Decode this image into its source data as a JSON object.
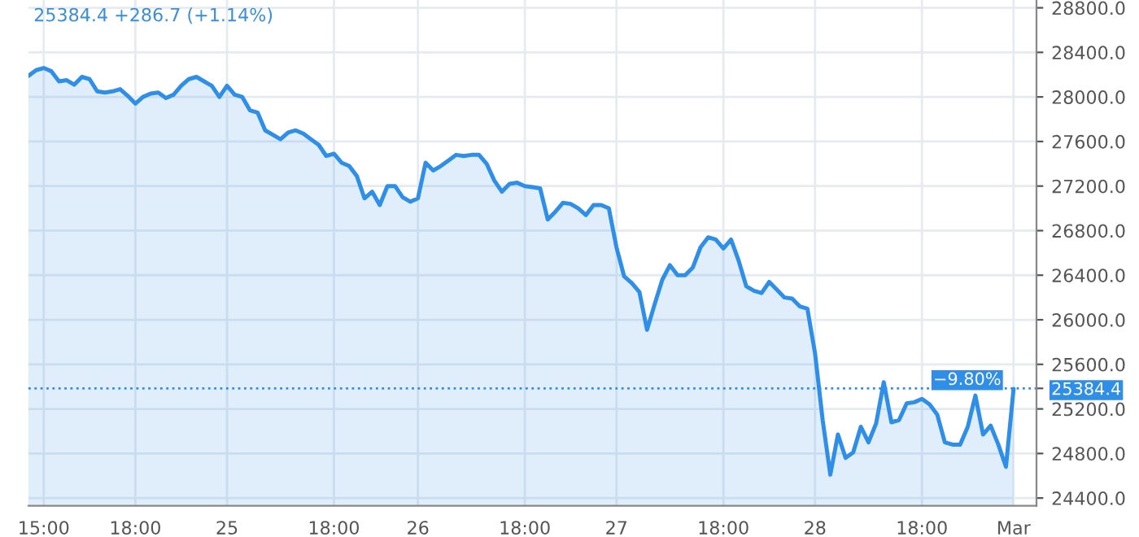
{
  "chart_data": {
    "type": "area",
    "annotations": [
      "25384.4 +286.7 (+1.14%)"
    ],
    "categories": [
      null,
      null,
      "15:00",
      null,
      null,
      null,
      null,
      null,
      null,
      null,
      null,
      null,
      null,
      null,
      "18:00",
      null,
      null,
      null,
      null,
      null,
      null,
      null,
      null,
      null,
      null,
      null,
      "25",
      null,
      null,
      null,
      null,
      null,
      null,
      null,
      null,
      null,
      null,
      null,
      null,
      null,
      "18:00",
      null,
      null,
      null,
      null,
      null,
      null,
      null,
      null,
      null,
      null,
      "26",
      null,
      null,
      null,
      null,
      null,
      null,
      null,
      null,
      null,
      null,
      null,
      null,
      null,
      "18:00",
      null,
      null,
      null,
      null,
      null,
      null,
      null,
      null,
      null,
      null,
      null,
      "27",
      null,
      null,
      null,
      null,
      null,
      null,
      null,
      null,
      null,
      null,
      null,
      null,
      null,
      "18:00",
      null,
      null,
      null,
      null,
      null,
      null,
      null,
      null,
      null,
      null,
      null,
      "28",
      null,
      null,
      null,
      null,
      null,
      null,
      null,
      null,
      null,
      null,
      null,
      null,
      null,
      "18:00",
      null,
      null,
      null,
      null,
      null,
      null,
      null,
      null,
      null,
      null,
      null,
      "Mar",
      null,
      null,
      null
    ],
    "series": [
      {
        "color": "#2f8fe8",
        "values": [
          28190,
          28240,
          28260,
          28230,
          28140,
          28150,
          28110,
          28180,
          28160,
          28050,
          28040,
          28050,
          28070,
          28010,
          27940,
          28000,
          28030,
          28040,
          27990,
          28020,
          28100,
          28160,
          28180,
          28140,
          28100,
          28000,
          28100,
          28020,
          28000,
          27880,
          27860,
          27700,
          27660,
          27620,
          27680,
          27700,
          27670,
          27620,
          27570,
          27470,
          27490,
          27410,
          27380,
          27290,
          27090,
          27150,
          27030,
          27200,
          27200,
          27100,
          27060,
          27090,
          27410,
          27340,
          27380,
          27430,
          27480,
          27470,
          27480,
          27480,
          27400,
          27250,
          27150,
          27220,
          27230,
          27200,
          27190,
          27180,
          26900,
          26970,
          27050,
          27040,
          27000,
          26940,
          27030,
          27030,
          27000,
          26650,
          26390,
          26330,
          26250,
          25910,
          26140,
          26360,
          26490,
          26400,
          26400,
          26470,
          26650,
          26740,
          26720,
          26640,
          26720,
          26530,
          26300,
          26260,
          26240,
          26340,
          26270,
          26200,
          26190,
          26120,
          26100,
          25700,
          25100,
          24610,
          24970,
          24760,
          24810,
          25040,
          24900,
          25070,
          25440,
          25080,
          25100,
          25250,
          25260,
          25290,
          25240,
          25150,
          24900,
          24880,
          24880,
          25040,
          25320,
          24970,
          25050,
          24880,
          24680,
          25380,
          null,
          null,
          null
        ]
      }
    ],
    "ylim": [
      24330,
      28870
    ],
    "yticks": [
      {
        "value": 24400,
        "label": "24400.0"
      },
      {
        "value": 24800,
        "label": "24800.0"
      },
      {
        "value": 25200,
        "label": "25200.0"
      },
      {
        "value": 25600,
        "label": "25600.0"
      },
      {
        "value": 26000,
        "label": "26000.0"
      },
      {
        "value": 26400,
        "label": "26400.0"
      },
      {
        "value": 26800,
        "label": "26800.0"
      },
      {
        "value": 27200,
        "label": "27200.0"
      },
      {
        "value": 27600,
        "label": "27600.0"
      },
      {
        "value": 28000,
        "label": "28000.0"
      },
      {
        "value": 28400,
        "label": "28400.0"
      },
      {
        "value": 28800,
        "label": "28800.0"
      },
      {
        "value": 25384.4,
        "label": "25384.4"
      }
    ],
    "ref_lines": [
      {
        "axis": "y",
        "value": 25384.4,
        "label": "−9.80%",
        "color": "#2f8fe8",
        "line_style": "dotted"
      }
    ],
    "grid": true
  }
}
